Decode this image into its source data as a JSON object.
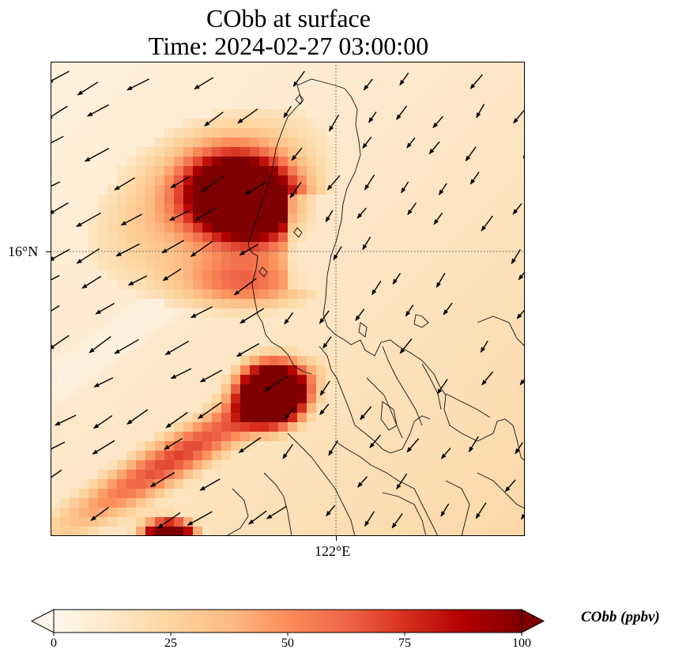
{
  "title": {
    "line1": "CObb at surface",
    "line2": "Time: 2024-02-27 03:00:00"
  },
  "map": {
    "variable": "CObb",
    "level": "surface",
    "projection": "PlateCarree",
    "gridlines": {
      "latitude_label": "16°N",
      "longitude_label": "122°E"
    },
    "background_color": "#fde8cc",
    "coastline_color": "#000000",
    "wind_vector_color": "#000000",
    "plume_regions": [
      {
        "name": "northern-luzon-plume",
        "intensity": "high",
        "max_value_ppbv": 100
      },
      {
        "name": "central-luzon-plume",
        "intensity": "high",
        "max_value_ppbv": 100
      },
      {
        "name": "southwest-plume",
        "intensity": "high",
        "max_value_ppbv": 100
      }
    ],
    "wind_direction": "northeasterly"
  },
  "colorbar": {
    "label": "CObb (ppbv)",
    "colormap": "OrRd",
    "min": 0,
    "max": 100,
    "extend": "both",
    "ticks": [
      "0",
      "25",
      "50",
      "75",
      "100"
    ],
    "colors": [
      "#fff7ec",
      "#fee8c8",
      "#fdd49e",
      "#fdbb84",
      "#fc8d59",
      "#ef6548",
      "#d7301f",
      "#b30000",
      "#7f0000"
    ]
  }
}
